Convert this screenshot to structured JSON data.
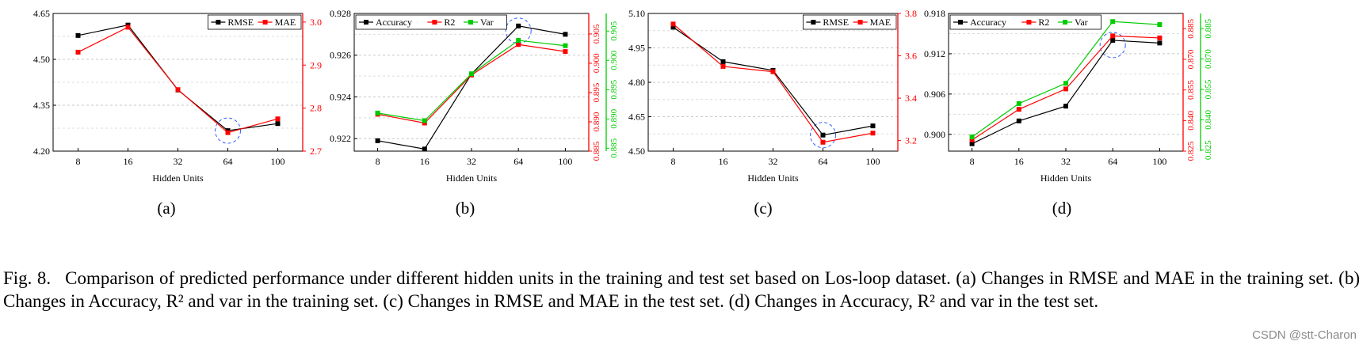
{
  "chart_data": [
    {
      "type": "line",
      "panel_label": "(a)",
      "xlabel": "Hidden Units",
      "categories": [
        "8",
        "16",
        "32",
        "64",
        "100"
      ],
      "left_axis": {
        "range": [
          4.2,
          4.65
        ],
        "ticks": [
          "4.20",
          "4.35",
          "4.50",
          "4.65"
        ],
        "color": "#000000"
      },
      "right_axes": [
        {
          "range": [
            2.7,
            3.02
          ],
          "ticks": [
            "2.7",
            "2.8",
            "2.9",
            "3.0"
          ],
          "color": "#ff0000"
        }
      ],
      "legend": {
        "position": "top-right"
      },
      "highlight_category": "64",
      "series": [
        {
          "name": "RMSE",
          "axis": "left",
          "color": "#000000",
          "values": [
            4.578,
            4.612,
            4.4,
            4.267,
            4.29
          ]
        },
        {
          "name": "MAE",
          "axis": "right1",
          "color": "#ff0000",
          "values": [
            2.93,
            2.988,
            2.843,
            2.743,
            2.775
          ]
        }
      ]
    },
    {
      "type": "line",
      "panel_label": "(b)",
      "xlabel": "Hidden Units",
      "categories": [
        "8",
        "16",
        "32",
        "64",
        "100"
      ],
      "left_axis": {
        "range": [
          0.9214,
          0.928
        ],
        "ticks": [
          "0.922",
          "0.924",
          "0.926",
          "0.928"
        ],
        "color": "#000000"
      },
      "right_axes": [
        {
          "range": [
            0.885,
            0.9085
          ],
          "ticks": [
            "0.885",
            "0.890",
            "0.895",
            "0.900",
            "0.905"
          ],
          "color": "#ff0000"
        },
        {
          "range": [
            0.8845,
            0.908
          ],
          "ticks": [
            "0.885",
            "0.890",
            "0.895",
            "0.900",
            "0.905"
          ],
          "color": "#00cc00"
        }
      ],
      "legend": {
        "position": "top-left"
      },
      "highlight_category": "64",
      "series": [
        {
          "name": "Accuracy",
          "axis": "left",
          "color": "#000000",
          "values": [
            0.9219,
            0.9215,
            0.9251,
            0.9274,
            0.927
          ]
        },
        {
          "name": "R2",
          "axis": "right1",
          "color": "#ff0000",
          "values": [
            0.8913,
            0.8898,
            0.898,
            0.9032,
            0.902
          ]
        },
        {
          "name": "Var",
          "axis": "right2",
          "color": "#00cc00",
          "values": [
            0.891,
            0.8897,
            0.8977,
            0.9034,
            0.9025
          ]
        }
      ]
    },
    {
      "type": "line",
      "panel_label": "(c)",
      "xlabel": "Hidden Units",
      "categories": [
        "8",
        "16",
        "32",
        "64",
        "100"
      ],
      "left_axis": {
        "range": [
          4.5,
          5.1
        ],
        "ticks": [
          "4.50",
          "4.65",
          "4.80",
          "4.95",
          "5.10"
        ],
        "color": "#000000"
      },
      "right_axes": [
        {
          "range": [
            3.15,
            3.8
          ],
          "ticks": [
            "3.2",
            "3.4",
            "3.6",
            "3.8"
          ],
          "color": "#ff0000"
        }
      ],
      "legend": {
        "position": "top-right"
      },
      "highlight_category": "64",
      "series": [
        {
          "name": "RMSE",
          "axis": "left",
          "color": "#000000",
          "values": [
            5.04,
            4.89,
            4.852,
            4.57,
            4.61
          ]
        },
        {
          "name": "MAE",
          "axis": "right1",
          "color": "#ff0000",
          "values": [
            3.75,
            3.55,
            3.525,
            3.192,
            3.235
          ]
        }
      ]
    },
    {
      "type": "line",
      "panel_label": "(d)",
      "xlabel": "Hidden Units",
      "categories": [
        "8",
        "16",
        "32",
        "64",
        "100"
      ],
      "left_axis": {
        "range": [
          0.8975,
          0.918
        ],
        "ticks": [
          "0.900",
          "0.906",
          "0.912",
          "0.918"
        ],
        "color": "#000000"
      },
      "right_axes": [
        {
          "range": [
            0.825,
            0.8925
          ],
          "ticks": [
            "0.825",
            "0.840",
            "0.855",
            "0.870",
            "0.885"
          ],
          "color": "#ff0000"
        },
        {
          "range": [
            0.8245,
            0.8925
          ],
          "ticks": [
            "0.825",
            "0.840",
            "0.855",
            "0.870",
            "0.885"
          ],
          "color": "#00cc00"
        }
      ],
      "legend": {
        "position": "top-left"
      },
      "highlight_category": "64",
      "series": [
        {
          "name": "Accuracy",
          "axis": "left",
          "color": "#000000",
          "values": [
            0.8986,
            0.902,
            0.9042,
            0.914,
            0.9136
          ]
        },
        {
          "name": "R2",
          "axis": "right1",
          "color": "#ff0000",
          "values": [
            0.8305,
            0.8455,
            0.8555,
            0.8815,
            0.8805
          ]
        },
        {
          "name": "Var",
          "axis": "right2",
          "color": "#00cc00",
          "values": [
            0.8315,
            0.848,
            0.858,
            0.8885,
            0.887
          ]
        }
      ]
    }
  ],
  "caption": {
    "figure_label": "Fig. 8.",
    "text": "Comparison of predicted performance under different hidden units in the training and test set based on Los-loop dataset. (a) Changes in RMSE and MAE in the training set. (b) Changes in Accuracy, R² and var in the training set. (c) Changes in RMSE and MAE in the test set. (d) Changes in Accuracy, R² and var in the test set."
  },
  "watermark": "CSDN @stt-Charon"
}
